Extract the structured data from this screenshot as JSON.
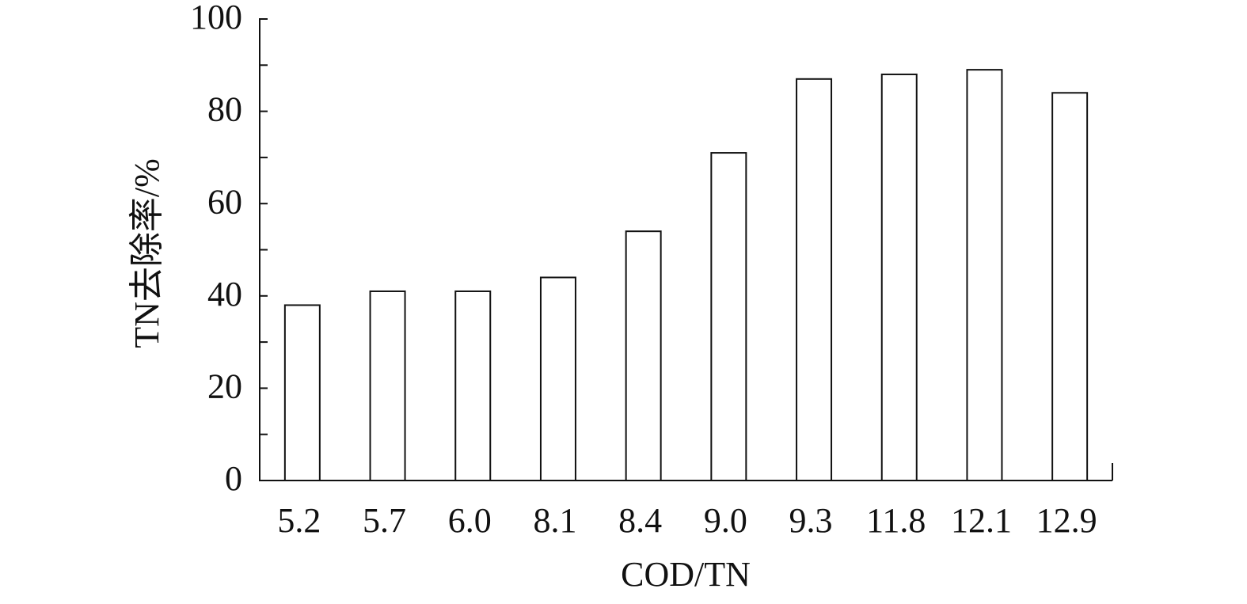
{
  "chart_data": {
    "type": "bar",
    "x_label": "COD/TN",
    "y_label": "TN去除率/%",
    "categories": [
      "5.2",
      "5.7",
      "6.0",
      "8.1",
      "8.4",
      "9.0",
      "9.3",
      "11.8",
      "12.1",
      "12.9"
    ],
    "values": [
      38,
      41,
      41,
      44,
      54,
      71,
      87,
      88,
      89,
      84
    ],
    "color": "#ffffff",
    "ylim": [
      0,
      100
    ],
    "yticks": [
      0,
      20,
      40,
      60,
      80,
      100
    ],
    "minor_yticks": [
      10,
      30,
      50,
      70,
      90
    ],
    "grid": false
  }
}
